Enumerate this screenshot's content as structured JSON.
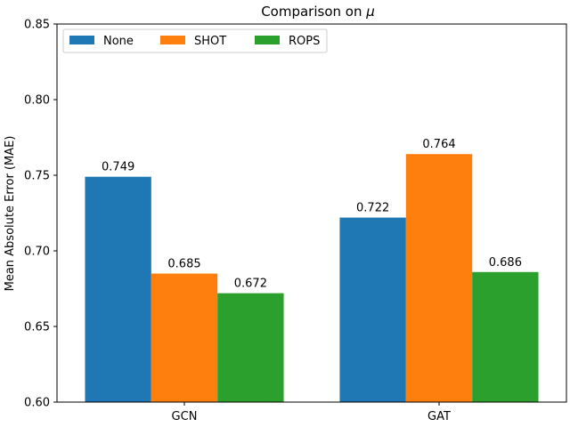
{
  "chart_data": {
    "type": "bar",
    "title_prefix": "Comparison on ",
    "title_symbol": "μ",
    "xlabel": "",
    "ylabel": "Mean Absolute Error (MAE)",
    "categories": [
      "GCN",
      "GAT"
    ],
    "series": [
      {
        "name": "None",
        "color": "#1f77b4",
        "values": [
          0.749,
          0.722
        ]
      },
      {
        "name": "SHOT",
        "color": "#ff7f0e",
        "values": [
          0.685,
          0.764
        ]
      },
      {
        "name": "ROPS",
        "color": "#2ca02c",
        "values": [
          0.672,
          0.686
        ]
      }
    ],
    "data_labels": [
      [
        "0.749",
        "0.722"
      ],
      [
        "0.685",
        "0.764"
      ],
      [
        "0.672",
        "0.686"
      ]
    ],
    "ylim": [
      0.6,
      0.85
    ],
    "yticks": [
      "0.60",
      "0.65",
      "0.70",
      "0.75",
      "0.80",
      "0.85"
    ],
    "grid": false,
    "legend_position": "top-left"
  }
}
